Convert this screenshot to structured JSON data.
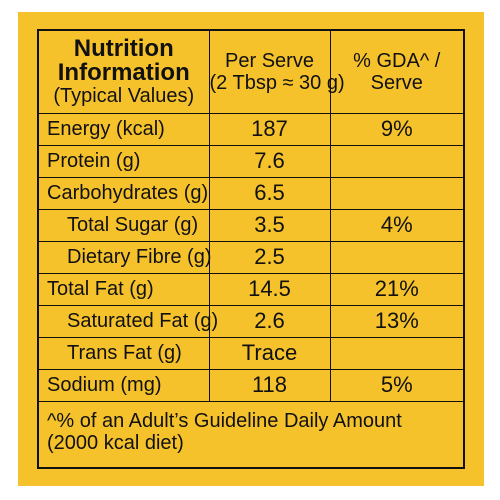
{
  "header": {
    "title_line1": "Nutrition",
    "title_line2": "Information",
    "title_line3": "(Typical Values)",
    "per_serve_line1": "Per Serve",
    "per_serve_line2": "(2 Tbsp ≈ 30 g)",
    "gda_line1": "% GDA^ /",
    "gda_line2": "Serve"
  },
  "rows": [
    {
      "name": "Energy (kcal)",
      "value": "187",
      "gda": "9%"
    },
    {
      "name": "Protein (g)",
      "value": "7.6",
      "gda": ""
    },
    {
      "name": "Carbohydrates (g)",
      "value": "6.5",
      "gda": ""
    },
    {
      "name": "Total Sugar (g)",
      "value": "3.5",
      "gda": "4%"
    },
    {
      "name": "Dietary Fibre (g)",
      "value": "2.5",
      "gda": ""
    },
    {
      "name": "Total Fat (g)",
      "value": "14.5",
      "gda": "21%"
    },
    {
      "name": "Saturated Fat (g)",
      "value": "2.6",
      "gda": "13%"
    },
    {
      "name": "Trans Fat (g)",
      "value": "Trace",
      "gda": ""
    },
    {
      "name": "Sodium (mg)",
      "value": "118",
      "gda": "5%"
    }
  ],
  "footnote": {
    "line1": "^% of an Adult’s Guideline Daily Amount",
    "line2": "(2000 kcal diet)"
  },
  "colors": {
    "background": "#f6c22c",
    "text": "#111111",
    "border": "#111111"
  }
}
